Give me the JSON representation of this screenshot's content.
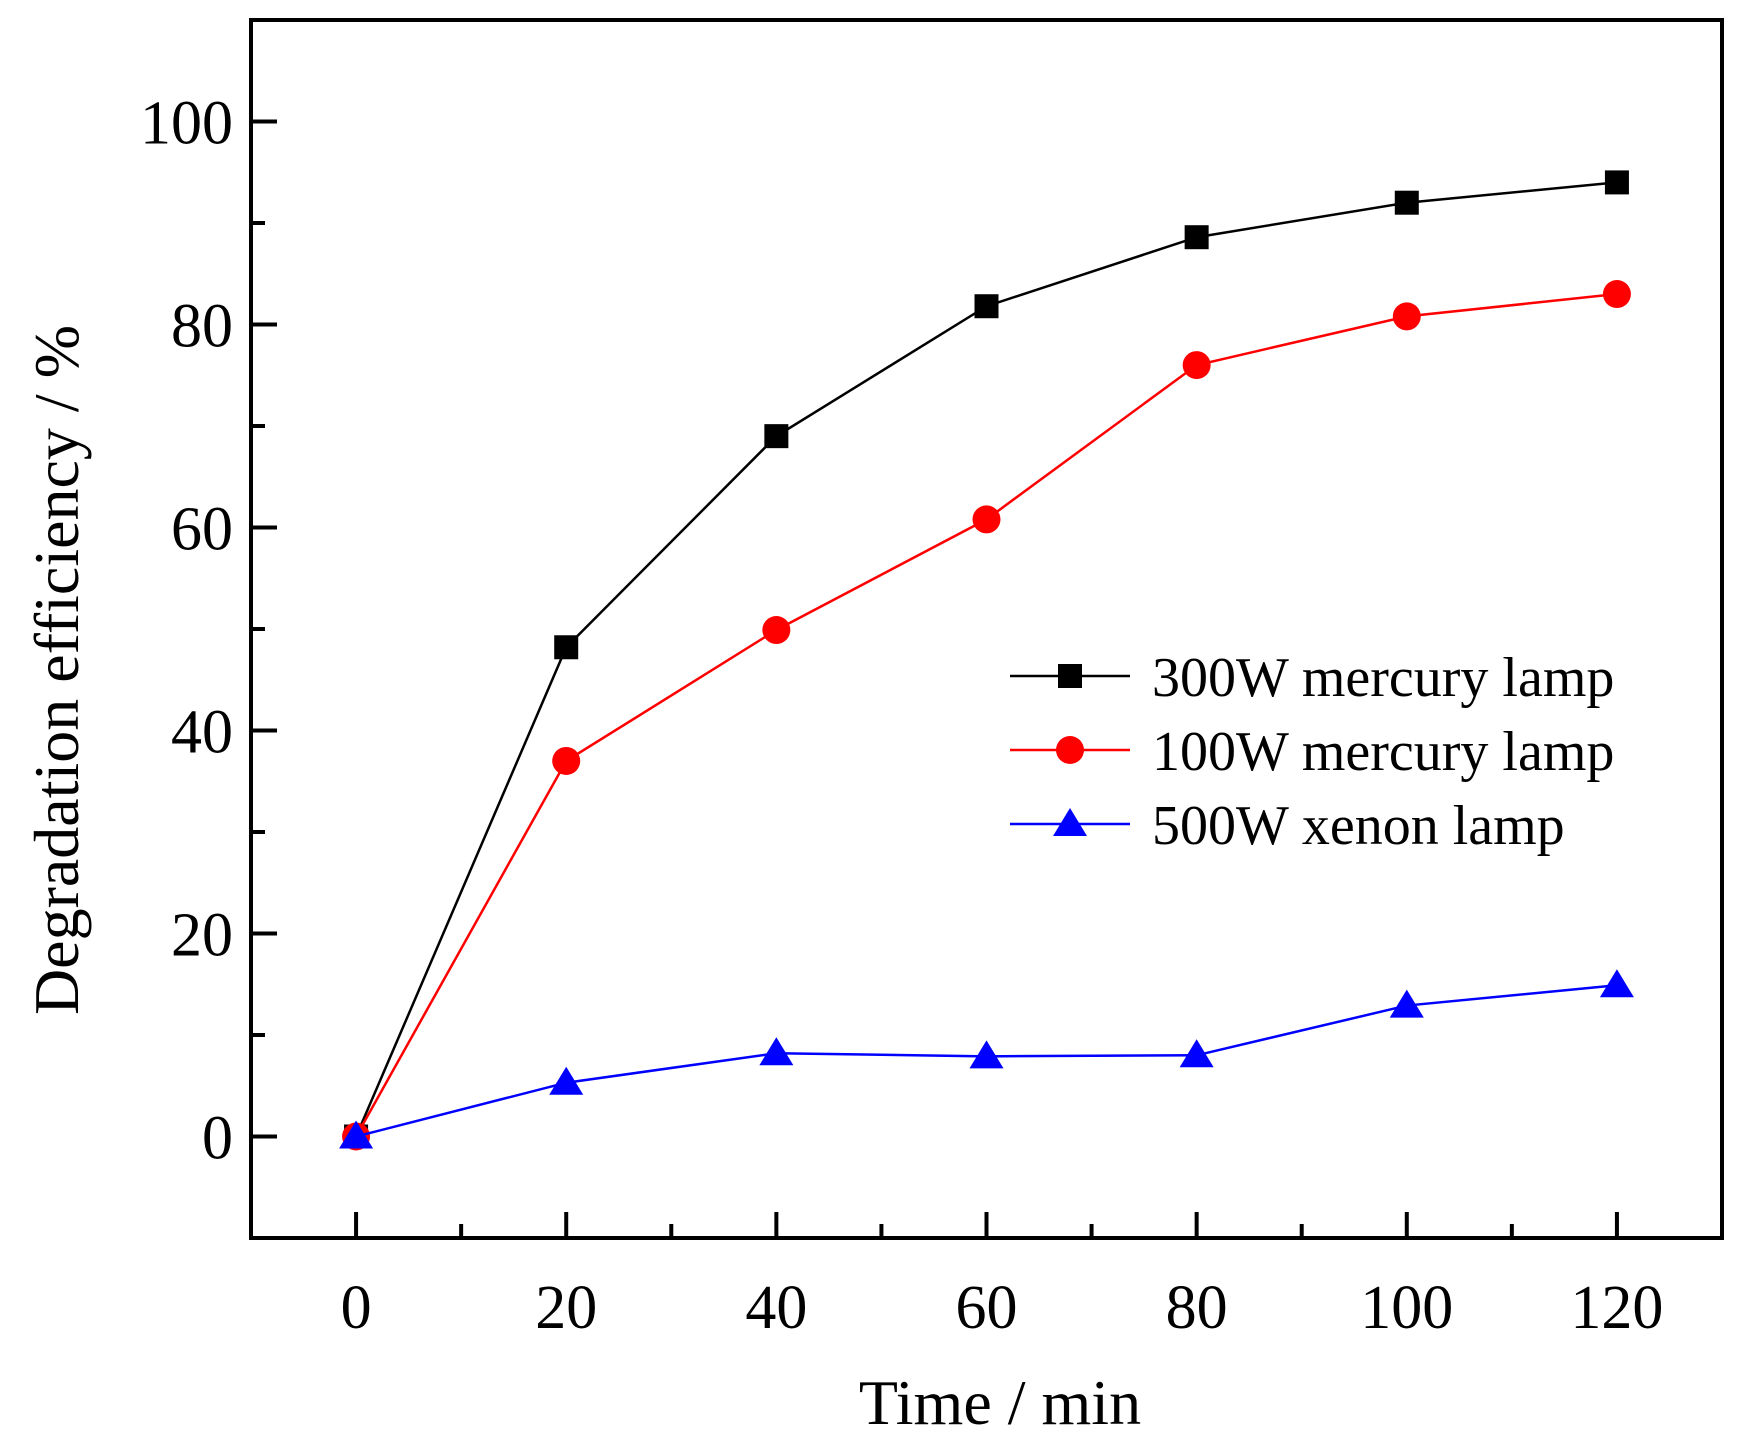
{
  "chart_data": {
    "type": "line",
    "title": "",
    "xlabel": "Time / min",
    "ylabel": "Degradation efficiency / %",
    "xlim": [
      -10,
      130
    ],
    "ylim": [
      -10,
      110
    ],
    "x_major_ticks": [
      0,
      20,
      40,
      60,
      80,
      100,
      120
    ],
    "x_minor_ticks": [
      10,
      30,
      50,
      70,
      90,
      110
    ],
    "y_major_ticks": [
      0,
      20,
      40,
      60,
      80,
      100
    ],
    "y_minor_ticks": [
      10,
      30,
      50,
      70,
      90
    ],
    "x": [
      0,
      20,
      40,
      60,
      80,
      100,
      120
    ],
    "legend_position": "center-right",
    "series": [
      {
        "name": "300W mercury lamp",
        "color": "#000000",
        "marker": "square",
        "values": [
          0,
          48.2,
          69,
          81.8,
          88.6,
          92,
          94
        ]
      },
      {
        "name": "100W mercury lamp",
        "color": "#ff0000",
        "marker": "circle",
        "values": [
          0,
          37,
          49.9,
          60.8,
          76,
          80.8,
          83
        ]
      },
      {
        "name": "500W xenon lamp",
        "color": "#0000ff",
        "marker": "triangle",
        "values": [
          0,
          5.3,
          8.2,
          7.9,
          8,
          12.9,
          14.9
        ]
      }
    ]
  }
}
